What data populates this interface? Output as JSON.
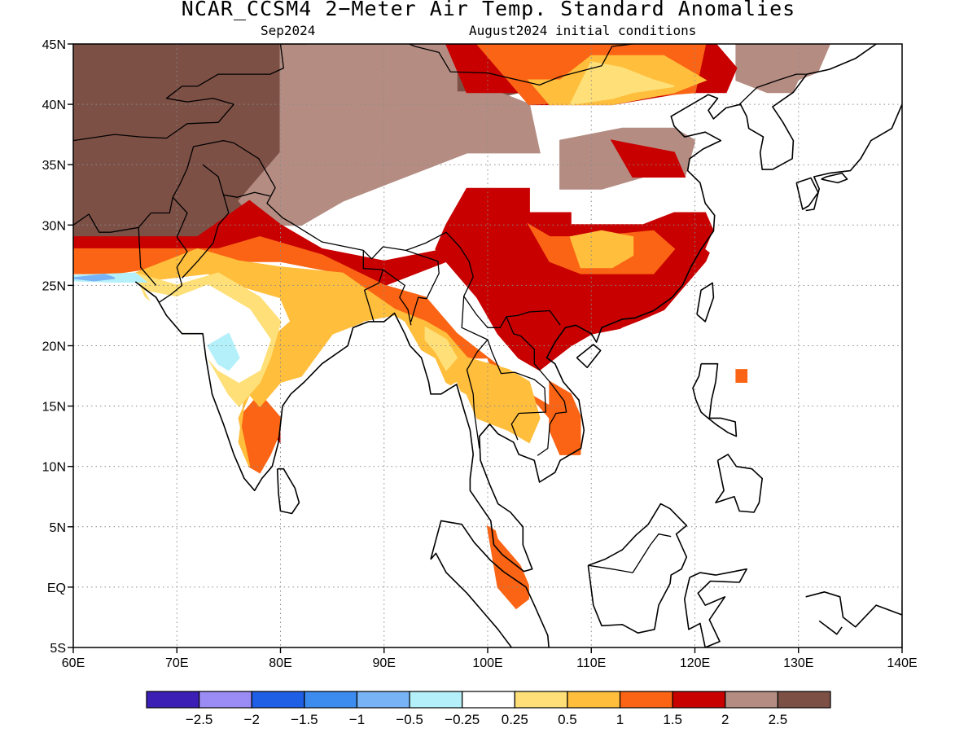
{
  "title": "NCAR_CCSM4 2−Meter Air Temp. Standard Anomalies",
  "subtitle_left": "Sep2024",
  "subtitle_right": "August2024 initial conditions",
  "colors": {
    "lt_m25": "#3c1fb4",
    "m25_m2": "#9b8cf5",
    "m2_m15": "#1f5fe6",
    "m15_m1": "#3c8cf0",
    "m1_m05": "#78b4f5",
    "m05_m025": "#b4f0fa",
    "m025_025": "#ffffff",
    "p025_05": "#ffe078",
    "p05_1": "#ffbe3c",
    "p1_15": "#fa6414",
    "p15_2": "#c80000",
    "p2_25": "#b48c82",
    "gt_25": "#7d5046",
    "coast": "#000000",
    "grid": "#8a8a8a"
  },
  "map": {
    "lon_min": 60,
    "lon_max": 140,
    "lat_min": -5,
    "lat_max": 45,
    "lat_ticks": [
      "45N",
      "40N",
      "35N",
      "30N",
      "25N",
      "20N",
      "15N",
      "10N",
      "5N",
      "EQ",
      "5S"
    ],
    "lon_ticks": [
      "60E",
      "70E",
      "80E",
      "90E",
      "100E",
      "110E",
      "120E",
      "130E",
      "140E"
    ]
  },
  "colorbar": {
    "labels": [
      "−2.5",
      "−2",
      "−1.5",
      "−1",
      "−0.5",
      "−0.25",
      "0.25",
      "0.5",
      "1",
      "1.5",
      "2",
      "2.5"
    ],
    "bins": [
      "lt_m25",
      "m25_m2",
      "m2_m15",
      "m15_m1",
      "m1_m05",
      "m05_m025",
      "m025_025",
      "p025_05",
      "p05_1",
      "p1_15",
      "p15_2",
      "p2_25",
      "gt_25"
    ]
  }
}
